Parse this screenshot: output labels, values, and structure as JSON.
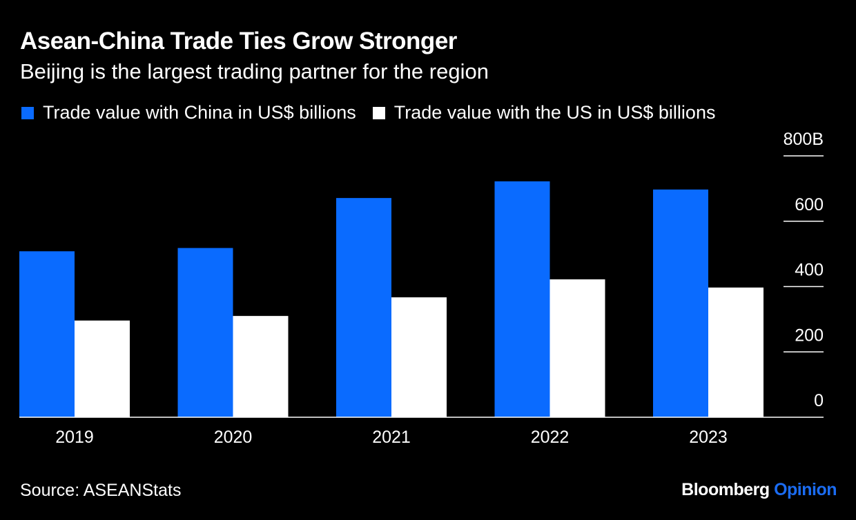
{
  "title": "Asean-China Trade Ties Grow Stronger",
  "subtitle": "Beijing is the largest trading partner for the region",
  "source": "Source: ASEANStats",
  "brand": {
    "name": "Bloomberg",
    "accent_word": "Opinion"
  },
  "colors": {
    "background": "#000000",
    "china": "#0a6bff",
    "us": "#ffffff",
    "brand_accent": "#1b6cf2"
  },
  "chart_data": {
    "type": "bar",
    "categories": [
      "2019",
      "2020",
      "2021",
      "2022",
      "2023"
    ],
    "series": [
      {
        "name": "Trade value with China in US$ billions",
        "color": "#0a6bff",
        "values": [
          508,
          518,
          671,
          722,
          697
        ]
      },
      {
        "name": "Trade value with the US in US$ billions",
        "color": "#ffffff",
        "values": [
          296,
          310,
          367,
          422,
          397
        ]
      }
    ],
    "ylim": [
      0,
      800
    ],
    "yticks": [
      {
        "value": 0,
        "label": "0"
      },
      {
        "value": 200,
        "label": "200"
      },
      {
        "value": 400,
        "label": "400"
      },
      {
        "value": 600,
        "label": "600"
      },
      {
        "value": 800,
        "label": "800B"
      }
    ],
    "y_axis_position": "right",
    "legend_position": "top-left"
  }
}
